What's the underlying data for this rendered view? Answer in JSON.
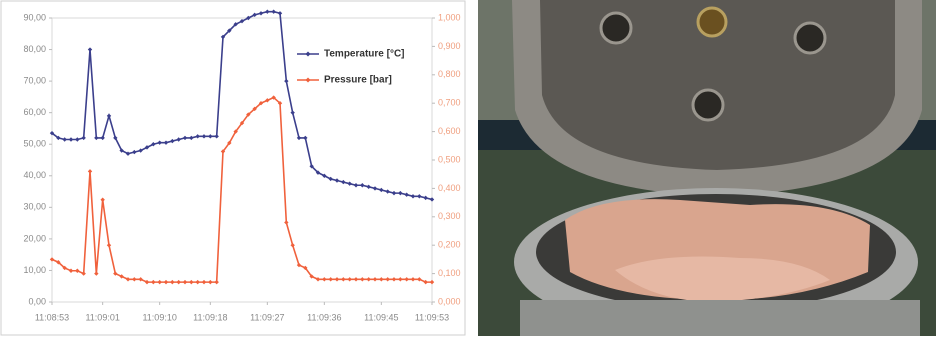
{
  "chart_data": {
    "type": "line",
    "categories": [
      "11:08:53",
      null,
      null,
      null,
      null,
      null,
      null,
      null,
      "11:09:01",
      null,
      null,
      null,
      null,
      null,
      null,
      null,
      null,
      "11:09:10",
      null,
      null,
      null,
      null,
      null,
      null,
      null,
      "11:09:18",
      null,
      null,
      null,
      null,
      null,
      null,
      null,
      null,
      "11:09:27",
      null,
      null,
      null,
      null,
      null,
      null,
      null,
      null,
      "11:09:36",
      null,
      null,
      null,
      null,
      null,
      null,
      null,
      null,
      "11:09:45",
      null,
      null,
      null,
      null,
      null,
      null,
      null,
      "11:09:53"
    ],
    "series": [
      {
        "name": "Temperature [°C]",
        "color": "#3b3f8c",
        "axis": "y",
        "values": [
          53.5,
          52,
          51.5,
          51.5,
          51.5,
          52,
          80,
          52,
          52,
          59,
          52,
          48,
          47,
          47.5,
          48,
          49,
          50,
          50.5,
          50.5,
          51,
          51.5,
          52,
          52,
          52.5,
          52.5,
          52.5,
          52.5,
          84,
          86,
          88,
          89,
          90,
          91,
          91.5,
          92,
          92,
          91.5,
          70,
          60,
          52,
          52,
          43,
          41,
          40,
          39,
          38.5,
          38,
          37.5,
          37,
          37,
          36.5,
          36,
          35.5,
          35,
          34.5,
          34.5,
          34,
          33.5,
          33.5,
          33,
          32.5
        ]
      },
      {
        "name": "Pressure [bar]",
        "color": "#f0613c",
        "axis": "y2",
        "values": [
          0.15,
          0.14,
          0.12,
          0.11,
          0.11,
          0.1,
          0.46,
          0.1,
          0.36,
          0.2,
          0.1,
          0.09,
          0.08,
          0.08,
          0.08,
          0.07,
          0.07,
          0.07,
          0.07,
          0.07,
          0.07,
          0.07,
          0.07,
          0.07,
          0.07,
          0.07,
          0.07,
          0.53,
          0.56,
          0.6,
          0.63,
          0.66,
          0.68,
          0.7,
          0.71,
          0.72,
          0.7,
          0.28,
          0.2,
          0.13,
          0.12,
          0.09,
          0.08,
          0.08,
          0.08,
          0.08,
          0.08,
          0.08,
          0.08,
          0.08,
          0.08,
          0.08,
          0.08,
          0.08,
          0.08,
          0.08,
          0.08,
          0.08,
          0.08,
          0.07,
          0.07
        ]
      }
    ],
    "ylim": [
      0,
      90
    ],
    "yticks": [
      {
        "value": 0,
        "label": "0,00"
      },
      {
        "value": 10,
        "label": "10,00"
      },
      {
        "value": 20,
        "label": "20,00"
      },
      {
        "value": 30,
        "label": "30,00"
      },
      {
        "value": 40,
        "label": "40,00"
      },
      {
        "value": 50,
        "label": "50,00"
      },
      {
        "value": 60,
        "label": "60,00"
      },
      {
        "value": 70,
        "label": "70,00"
      },
      {
        "value": 80,
        "label": "80,00"
      },
      {
        "value": 90,
        "label": "90,00"
      }
    ],
    "y2lim": [
      0,
      1
    ],
    "y2ticks": [
      {
        "value": 0,
        "label": "0,000"
      },
      {
        "value": 0.1,
        "label": "0,100"
      },
      {
        "value": 0.2,
        "label": "0,200"
      },
      {
        "value": 0.3,
        "label": "0,300"
      },
      {
        "value": 0.4,
        "label": "0,400"
      },
      {
        "value": 0.5,
        "label": "0,500"
      },
      {
        "value": 0.6,
        "label": "0,600"
      },
      {
        "value": 0.7,
        "label": "0,700"
      },
      {
        "value": 0.8,
        "label": "0,800"
      },
      {
        "value": 0.9,
        "label": "0,900"
      },
      {
        "value": 1,
        "label": "1,000"
      }
    ],
    "legend": "upper right"
  }
}
